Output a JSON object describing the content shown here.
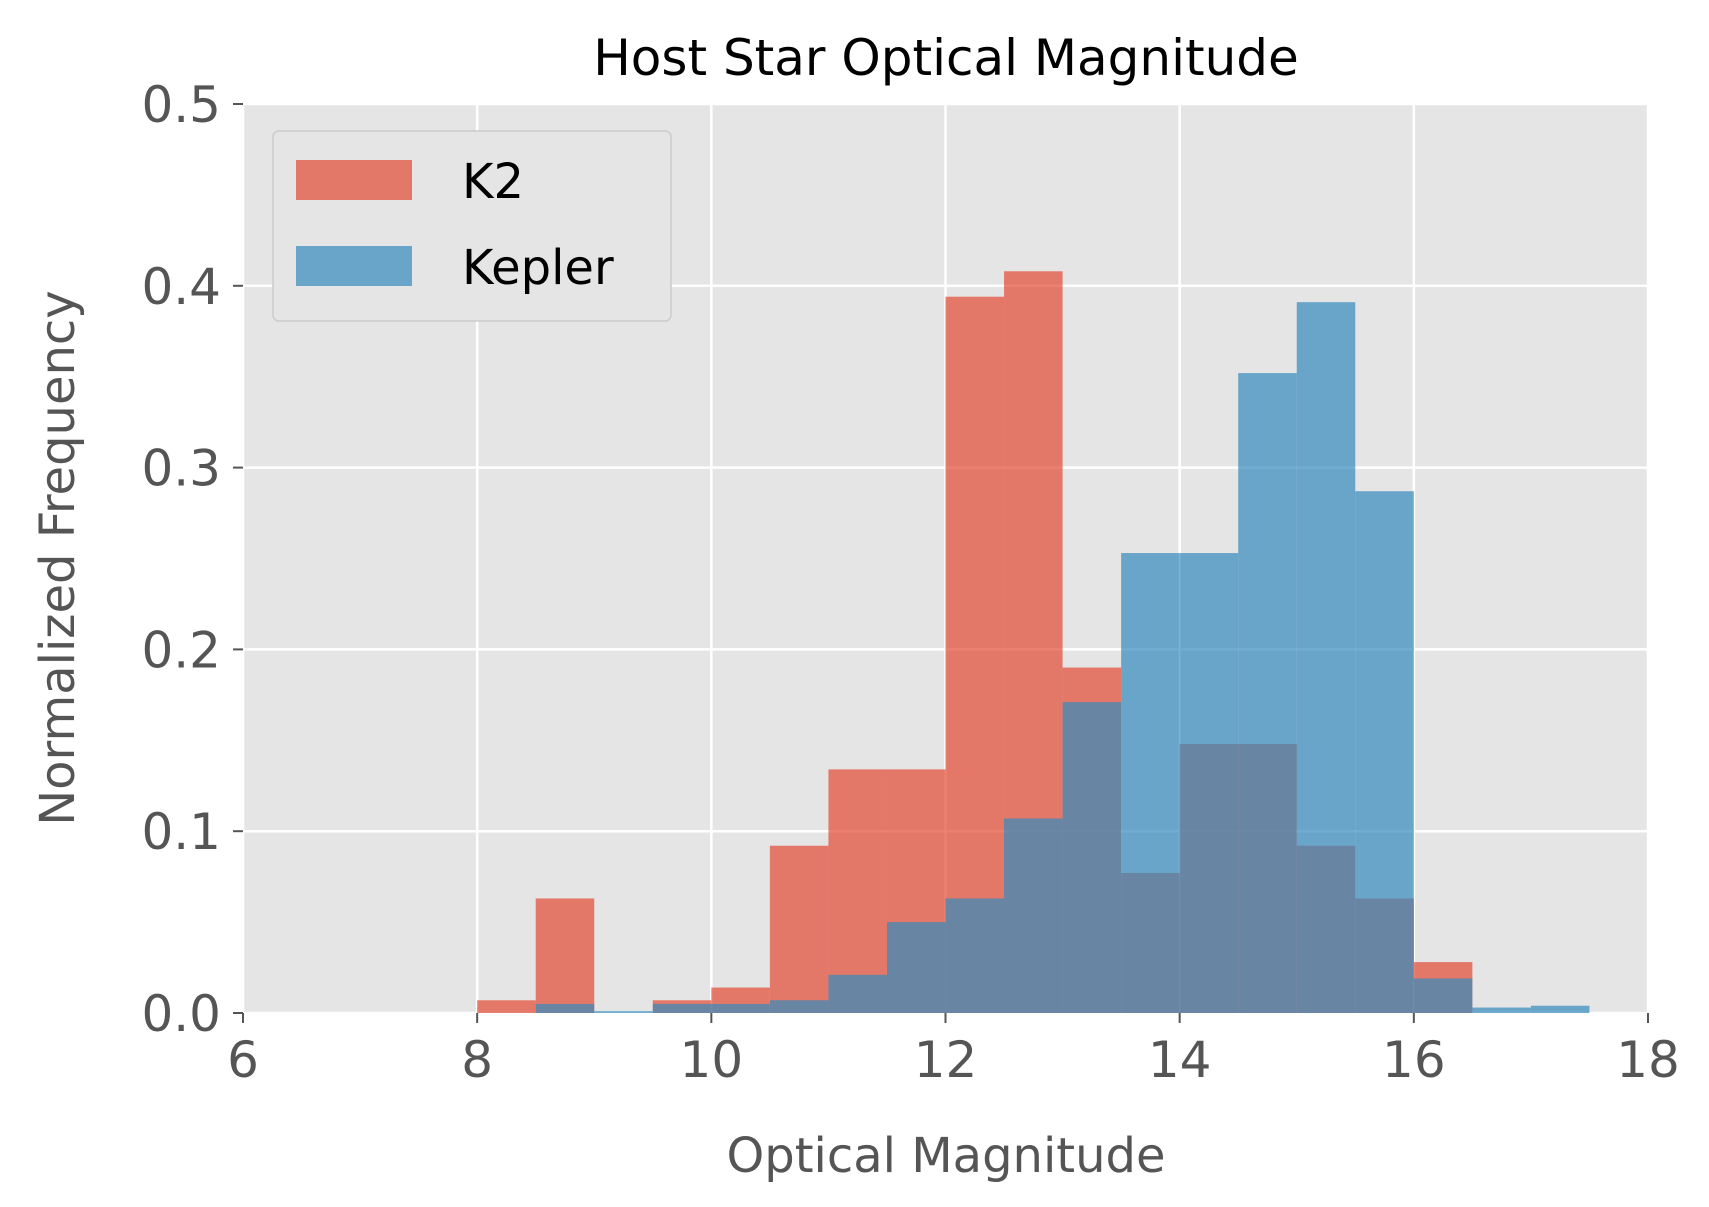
{
  "chart_data": {
    "type": "bar",
    "title": "Host Star Optical Magnitude",
    "xlabel": "Optical Magnitude",
    "ylabel": "Normalized Frequency",
    "xlim": [
      6,
      18
    ],
    "ylim": [
      0,
      0.5
    ],
    "xticks": [
      "6",
      "8",
      "10",
      "12",
      "14",
      "16",
      "18"
    ],
    "yticks": [
      "0.0",
      "0.1",
      "0.2",
      "0.3",
      "0.4",
      "0.5"
    ],
    "bin_width": 0.5,
    "grid": true,
    "legend_position": "upper-left",
    "colors": {
      "background": "#e5e5e5",
      "grid": "#ffffff",
      "K2": "#e24a33",
      "Kepler": "#348abd"
    },
    "series": [
      {
        "name": "K2",
        "bins_left": [
          8.0,
          8.5,
          9.0,
          9.5,
          10.0,
          10.5,
          11.0,
          11.5,
          12.0,
          12.5,
          13.0,
          13.5,
          14.0,
          14.5,
          15.0,
          15.5,
          16.0
        ],
        "values": [
          0.007,
          0.063,
          0.0,
          0.007,
          0.014,
          0.092,
          0.134,
          0.134,
          0.394,
          0.408,
          0.19,
          0.077,
          0.148,
          0.148,
          0.092,
          0.063,
          0.028
        ]
      },
      {
        "name": "Kepler",
        "bins_left": [
          8.5,
          9.0,
          9.5,
          10.0,
          10.5,
          11.0,
          11.5,
          12.0,
          12.5,
          13.0,
          13.5,
          14.0,
          14.5,
          15.0,
          15.5,
          16.0,
          16.5,
          17.0
        ],
        "values": [
          0.005,
          0.001,
          0.005,
          0.005,
          0.007,
          0.021,
          0.05,
          0.063,
          0.107,
          0.171,
          0.253,
          0.253,
          0.352,
          0.391,
          0.287,
          0.019,
          0.003,
          0.004
        ]
      }
    ]
  }
}
